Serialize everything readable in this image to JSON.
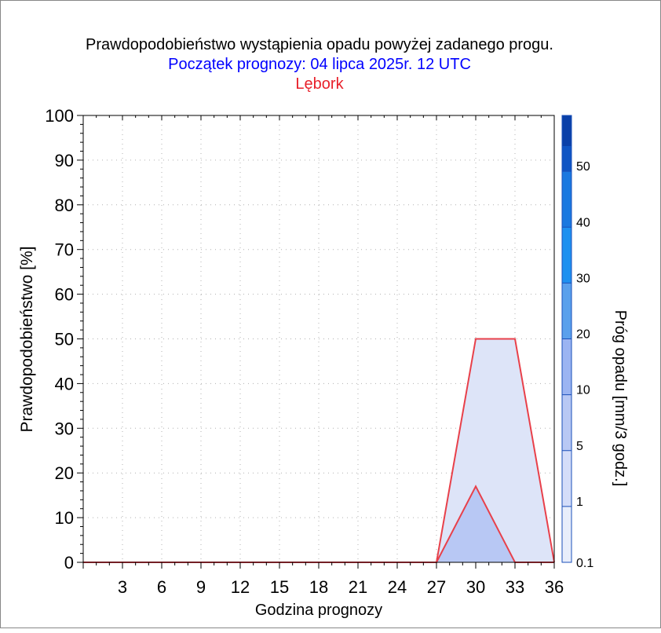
{
  "chart_data": {
    "type": "area",
    "title": "Prawdopodobieństwo wystąpienia opadu powyżej zadanego progu.",
    "subtitle": "Początek prognozy: 04 lipca 2025r. 12 UTC",
    "location": "Lębork",
    "xlabel": "Godzina prognozy",
    "ylabel": "Prawdopodobieństwo [%]",
    "colorbar_label": "Próg opadu [mm/3 godz.]",
    "xlim": [
      0,
      36
    ],
    "ylim": [
      0,
      100
    ],
    "x_ticks": [
      3,
      6,
      9,
      12,
      15,
      18,
      21,
      24,
      27,
      30,
      33,
      36
    ],
    "y_ticks": [
      0,
      10,
      20,
      30,
      40,
      50,
      60,
      70,
      80,
      90,
      100
    ],
    "grid": true,
    "x": [
      0,
      3,
      6,
      9,
      12,
      15,
      18,
      21,
      24,
      27,
      30,
      33,
      36
    ],
    "series": [
      {
        "threshold": 0.1,
        "color": "#dde4f8",
        "values": [
          0,
          0,
          0,
          0,
          0,
          0,
          0,
          0,
          0,
          0,
          50,
          50,
          0
        ]
      },
      {
        "threshold": 1,
        "color": "#b8c8f4",
        "values": [
          0,
          0,
          0,
          0,
          0,
          0,
          0,
          0,
          0,
          0,
          17,
          0,
          0
        ]
      }
    ],
    "outline_color": "#e8404a",
    "colorbar": {
      "labels": [
        "0.1",
        "1",
        "5",
        "10",
        "20",
        "30",
        "40",
        "50"
      ],
      "colors": [
        "#e8eefb",
        "#d4ddf9",
        "#b8c8f4",
        "#9bb4f2",
        "#5aa0ec",
        "#1e90f0",
        "#1a78e0",
        "#1466d2",
        "#0f55c4",
        "#0a40a8"
      ]
    }
  }
}
